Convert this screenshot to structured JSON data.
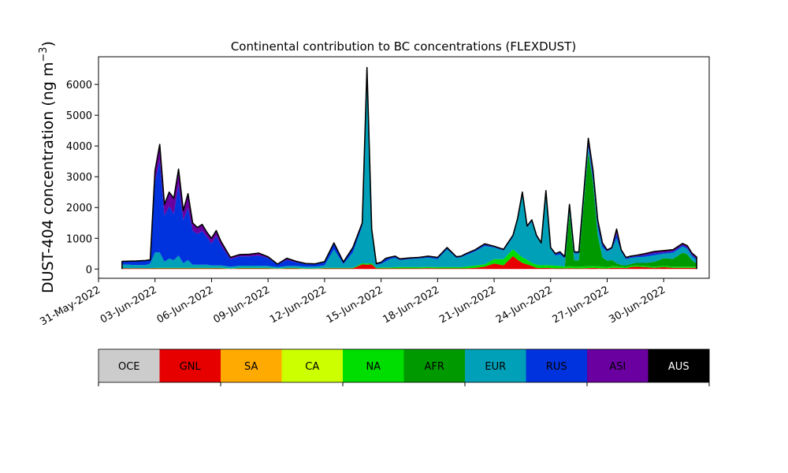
{
  "chart_data": {
    "type": "area",
    "stacked": true,
    "title": "Continental contribution to BC concentrations (FLEXDUST)",
    "ylabel_main": "DUST-404 concentration (ng m",
    "ylabel_sup": "−3",
    "ylabel_close": ")",
    "xlabel": "",
    "ylim": [
      -300,
      6900
    ],
    "xlim": [
      "2022-05-31T00:00",
      "2022-07-02T10:00"
    ],
    "yticks": [
      0,
      1000,
      2000,
      3000,
      4000,
      5000,
      6000
    ],
    "ytick_labels": [
      "0",
      "1000",
      "2000",
      "3000",
      "4000",
      "5000",
      "6000"
    ],
    "xticks": [
      "2022-05-31",
      "2022-06-03",
      "2022-06-06",
      "2022-06-09",
      "2022-06-12",
      "2022-06-15",
      "2022-06-18",
      "2022-06-21",
      "2022-06-24",
      "2022-06-27",
      "2022-06-30"
    ],
    "xtick_labels": [
      "31-May-2022",
      "03-Jun-2022",
      "06-Jun-2022",
      "09-Jun-2022",
      "12-Jun-2022",
      "15-Jun-2022",
      "18-Jun-2022",
      "21-Jun-2022",
      "24-Jun-2022",
      "27-Jun-2022",
      "30-Jun-2022"
    ],
    "grid": false,
    "x": [
      "2022-06-01T06:00",
      "2022-06-02T00:00",
      "2022-06-02T12:00",
      "2022-06-02T18:00",
      "2022-06-03T00:00",
      "2022-06-03T06:00",
      "2022-06-03T12:00",
      "2022-06-03T18:00",
      "2022-06-04T00:00",
      "2022-06-04T06:00",
      "2022-06-04T12:00",
      "2022-06-04T18:00",
      "2022-06-05T00:00",
      "2022-06-05T06:00",
      "2022-06-05T12:00",
      "2022-06-05T18:00",
      "2022-06-06T00:00",
      "2022-06-06T06:00",
      "2022-06-06T12:00",
      "2022-06-07T00:00",
      "2022-06-07T12:00",
      "2022-06-08T00:00",
      "2022-06-08T12:00",
      "2022-06-09T00:00",
      "2022-06-09T12:00",
      "2022-06-10T00:00",
      "2022-06-10T12:00",
      "2022-06-11T00:00",
      "2022-06-11T12:00",
      "2022-06-12T00:00",
      "2022-06-12T12:00",
      "2022-06-13T00:00",
      "2022-06-13T12:00",
      "2022-06-14T00:00",
      "2022-06-14T06:00",
      "2022-06-14T12:00",
      "2022-06-14T18:00",
      "2022-06-15T00:00",
      "2022-06-15T06:00",
      "2022-06-15T12:00",
      "2022-06-15T18:00",
      "2022-06-16T00:00",
      "2022-06-16T12:00",
      "2022-06-17T00:00",
      "2022-06-17T12:00",
      "2022-06-18T00:00",
      "2022-06-18T12:00",
      "2022-06-19T00:00",
      "2022-06-19T06:00",
      "2022-06-19T12:00",
      "2022-06-20T00:00",
      "2022-06-20T12:00",
      "2022-06-21T00:00",
      "2022-06-21T12:00",
      "2022-06-22T00:00",
      "2022-06-22T06:00",
      "2022-06-22T12:00",
      "2022-06-22T18:00",
      "2022-06-23T00:00",
      "2022-06-23T06:00",
      "2022-06-23T12:00",
      "2022-06-23T18:00",
      "2022-06-24T00:00",
      "2022-06-24T06:00",
      "2022-06-24T12:00",
      "2022-06-24T18:00",
      "2022-06-25T00:00",
      "2022-06-25T06:00",
      "2022-06-25T12:00",
      "2022-06-26T00:00",
      "2022-06-26T06:00",
      "2022-06-26T12:00",
      "2022-06-26T18:00",
      "2022-06-27T00:00",
      "2022-06-27T06:00",
      "2022-06-27T12:00",
      "2022-06-27T18:00",
      "2022-06-28T00:00",
      "2022-06-28T06:00",
      "2022-06-28T12:00",
      "2022-06-29T00:00",
      "2022-06-29T12:00",
      "2022-06-30T00:00",
      "2022-06-30T12:00",
      "2022-07-01T00:00",
      "2022-07-01T06:00",
      "2022-07-01T12:00",
      "2022-07-01T18:00"
    ],
    "total": [
      250,
      260,
      280,
      300,
      3200,
      4050,
      2100,
      2500,
      2300,
      3250,
      1900,
      2450,
      1500,
      1350,
      1450,
      1200,
      1000,
      1250,
      900,
      380,
      470,
      480,
      520,
      400,
      160,
      350,
      250,
      180,
      170,
      240,
      850,
      230,
      700,
      1500,
      6550,
      1300,
      180,
      220,
      350,
      390,
      420,
      330,
      360,
      380,
      420,
      380,
      700,
      400,
      420,
      500,
      630,
      820,
      740,
      640,
      1100,
      1650,
      2500,
      1400,
      1600,
      1100,
      850,
      2550,
      700,
      500,
      560,
      400,
      2100,
      560,
      550,
      4250,
      3200,
      1600,
      850,
      620,
      700,
      1300,
      620,
      380,
      420,
      440,
      500,
      570,
      600,
      630,
      830,
      760,
      520,
      390
    ],
    "series": [
      {
        "name": "GNL",
        "color": "#e60000",
        "values": [
          20,
          20,
          20,
          20,
          20,
          20,
          20,
          20,
          20,
          20,
          20,
          20,
          20,
          20,
          20,
          20,
          20,
          20,
          20,
          10,
          20,
          20,
          20,
          20,
          10,
          20,
          20,
          10,
          10,
          20,
          20,
          20,
          20,
          150,
          140,
          150,
          20,
          20,
          20,
          20,
          20,
          20,
          20,
          20,
          30,
          20,
          20,
          20,
          20,
          20,
          40,
          80,
          180,
          120,
          420,
          300,
          200,
          150,
          100,
          40,
          30,
          40,
          30,
          20,
          20,
          20,
          30,
          20,
          20,
          30,
          40,
          30,
          20,
          20,
          40,
          40,
          40,
          30,
          60,
          80,
          60,
          40,
          60,
          40,
          40,
          40,
          40,
          40
        ]
      },
      {
        "name": "NA",
        "color": "#00dd00",
        "values": [
          10,
          10,
          10,
          10,
          20,
          20,
          20,
          20,
          20,
          20,
          20,
          20,
          20,
          20,
          20,
          20,
          20,
          20,
          20,
          10,
          20,
          20,
          20,
          20,
          10,
          20,
          20,
          10,
          10,
          20,
          20,
          20,
          20,
          40,
          40,
          40,
          20,
          30,
          30,
          30,
          40,
          40,
          40,
          40,
          40,
          40,
          40,
          40,
          40,
          60,
          70,
          70,
          140,
          200,
          220,
          200,
          180,
          150,
          100,
          100,
          90,
          90,
          90,
          90,
          80,
          60,
          60,
          60,
          60,
          60,
          60,
          60,
          60,
          50,
          50,
          50,
          40,
          40,
          40,
          40,
          40,
          40,
          40,
          40,
          40,
          40,
          40,
          40
        ]
      },
      {
        "name": "AFR",
        "color": "#009900",
        "values": [
          0,
          0,
          0,
          0,
          0,
          0,
          0,
          0,
          0,
          0,
          0,
          0,
          0,
          0,
          0,
          0,
          0,
          0,
          0,
          0,
          0,
          0,
          0,
          0,
          0,
          0,
          0,
          0,
          0,
          0,
          0,
          0,
          0,
          0,
          0,
          0,
          0,
          0,
          0,
          0,
          0,
          0,
          0,
          0,
          0,
          0,
          0,
          0,
          0,
          0,
          0,
          0,
          0,
          0,
          0,
          0,
          0,
          0,
          0,
          0,
          0,
          0,
          0,
          0,
          0,
          0,
          1700,
          200,
          200,
          3700,
          2700,
          1000,
          300,
          200,
          200,
          100,
          50,
          50,
          60,
          80,
          100,
          150,
          250,
          250,
          450,
          400,
          200,
          100
        ]
      },
      {
        "name": "EUR",
        "color": "#00a0b8",
        "values": [
          120,
          100,
          100,
          150,
          500,
          500,
          200,
          300,
          250,
          400,
          150,
          250,
          100,
          100,
          100,
          100,
          80,
          80,
          80,
          60,
          70,
          70,
          70,
          60,
          40,
          60,
          60,
          60,
          60,
          80,
          600,
          120,
          500,
          1200,
          6300,
          1000,
          100,
          120,
          200,
          280,
          300,
          230,
          260,
          280,
          300,
          260,
          580,
          300,
          330,
          370,
          470,
          600,
          380,
          280,
          400,
          1100,
          2050,
          1050,
          1350,
          900,
          700,
          2350,
          540,
          330,
          370,
          270,
          260,
          230,
          230,
          160,
          110,
          260,
          330,
          300,
          360,
          810,
          430,
          200,
          200,
          180,
          200,
          220,
          150,
          200,
          200,
          180,
          140,
          110
        ]
      },
      {
        "name": "RUS",
        "color": "#0033dd",
        "values": [
          90,
          120,
          140,
          110,
          2300,
          3000,
          1500,
          1700,
          1500,
          2300,
          1400,
          1700,
          1100,
          1000,
          1100,
          900,
          700,
          950,
          650,
          240,
          300,
          300,
          330,
          260,
          90,
          200,
          120,
          80,
          70,
          100,
          190,
          50,
          140,
          80,
          50,
          80,
          20,
          30,
          80,
          40,
          40,
          20,
          20,
          20,
          30,
          40,
          40,
          20,
          20,
          30,
          30,
          40,
          20,
          20,
          30,
          30,
          40,
          30,
          30,
          40,
          20,
          50,
          20,
          40,
          60,
          30,
          30,
          30,
          30,
          100,
          150,
          120,
          90,
          20,
          20,
          150,
          30,
          30,
          30,
          30,
          50,
          60,
          40,
          40,
          50,
          40,
          40,
          40
        ]
      },
      {
        "name": "ASI",
        "color": "#6a00a0",
        "values": [
          10,
          10,
          10,
          10,
          360,
          510,
          340,
          460,
          510,
          510,
          310,
          460,
          260,
          210,
          210,
          160,
          180,
          180,
          130,
          60,
          60,
          70,
          80,
          40,
          10,
          50,
          30,
          20,
          20,
          20,
          20,
          20,
          20,
          30,
          20,
          30,
          20,
          20,
          20,
          20,
          20,
          20,
          20,
          20,
          20,
          20,
          20,
          20,
          10,
          20,
          20,
          30,
          20,
          20,
          30,
          20,
          30,
          20,
          20,
          20,
          10,
          20,
          20,
          20,
          30,
          20,
          20,
          20,
          10,
          200,
          200,
          130,
          50,
          30,
          30,
          150,
          30,
          30,
          30,
          30,
          50,
          60,
          60,
          60,
          50,
          60,
          60,
          60
        ]
      }
    ],
    "legend": {
      "placement": "bottom",
      "entries": [
        {
          "name": "OCE",
          "color": "#cccccc",
          "text_color": "#000000"
        },
        {
          "name": "GNL",
          "color": "#e60000",
          "text_color": "#000000"
        },
        {
          "name": "SA",
          "color": "#ffaa00",
          "text_color": "#000000"
        },
        {
          "name": "CA",
          "color": "#ccff00",
          "text_color": "#000000"
        },
        {
          "name": "NA",
          "color": "#00dd00",
          "text_color": "#000000"
        },
        {
          "name": "AFR",
          "color": "#009900",
          "text_color": "#000000"
        },
        {
          "name": "EUR",
          "color": "#00a0b8",
          "text_color": "#000000"
        },
        {
          "name": "RUS",
          "color": "#0033dd",
          "text_color": "#000000"
        },
        {
          "name": "ASI",
          "color": "#6a00a0",
          "text_color": "#000000"
        },
        {
          "name": "AUS",
          "color": "#000000",
          "text_color": "#ffffff"
        }
      ]
    },
    "total_line_color": "#000000"
  }
}
